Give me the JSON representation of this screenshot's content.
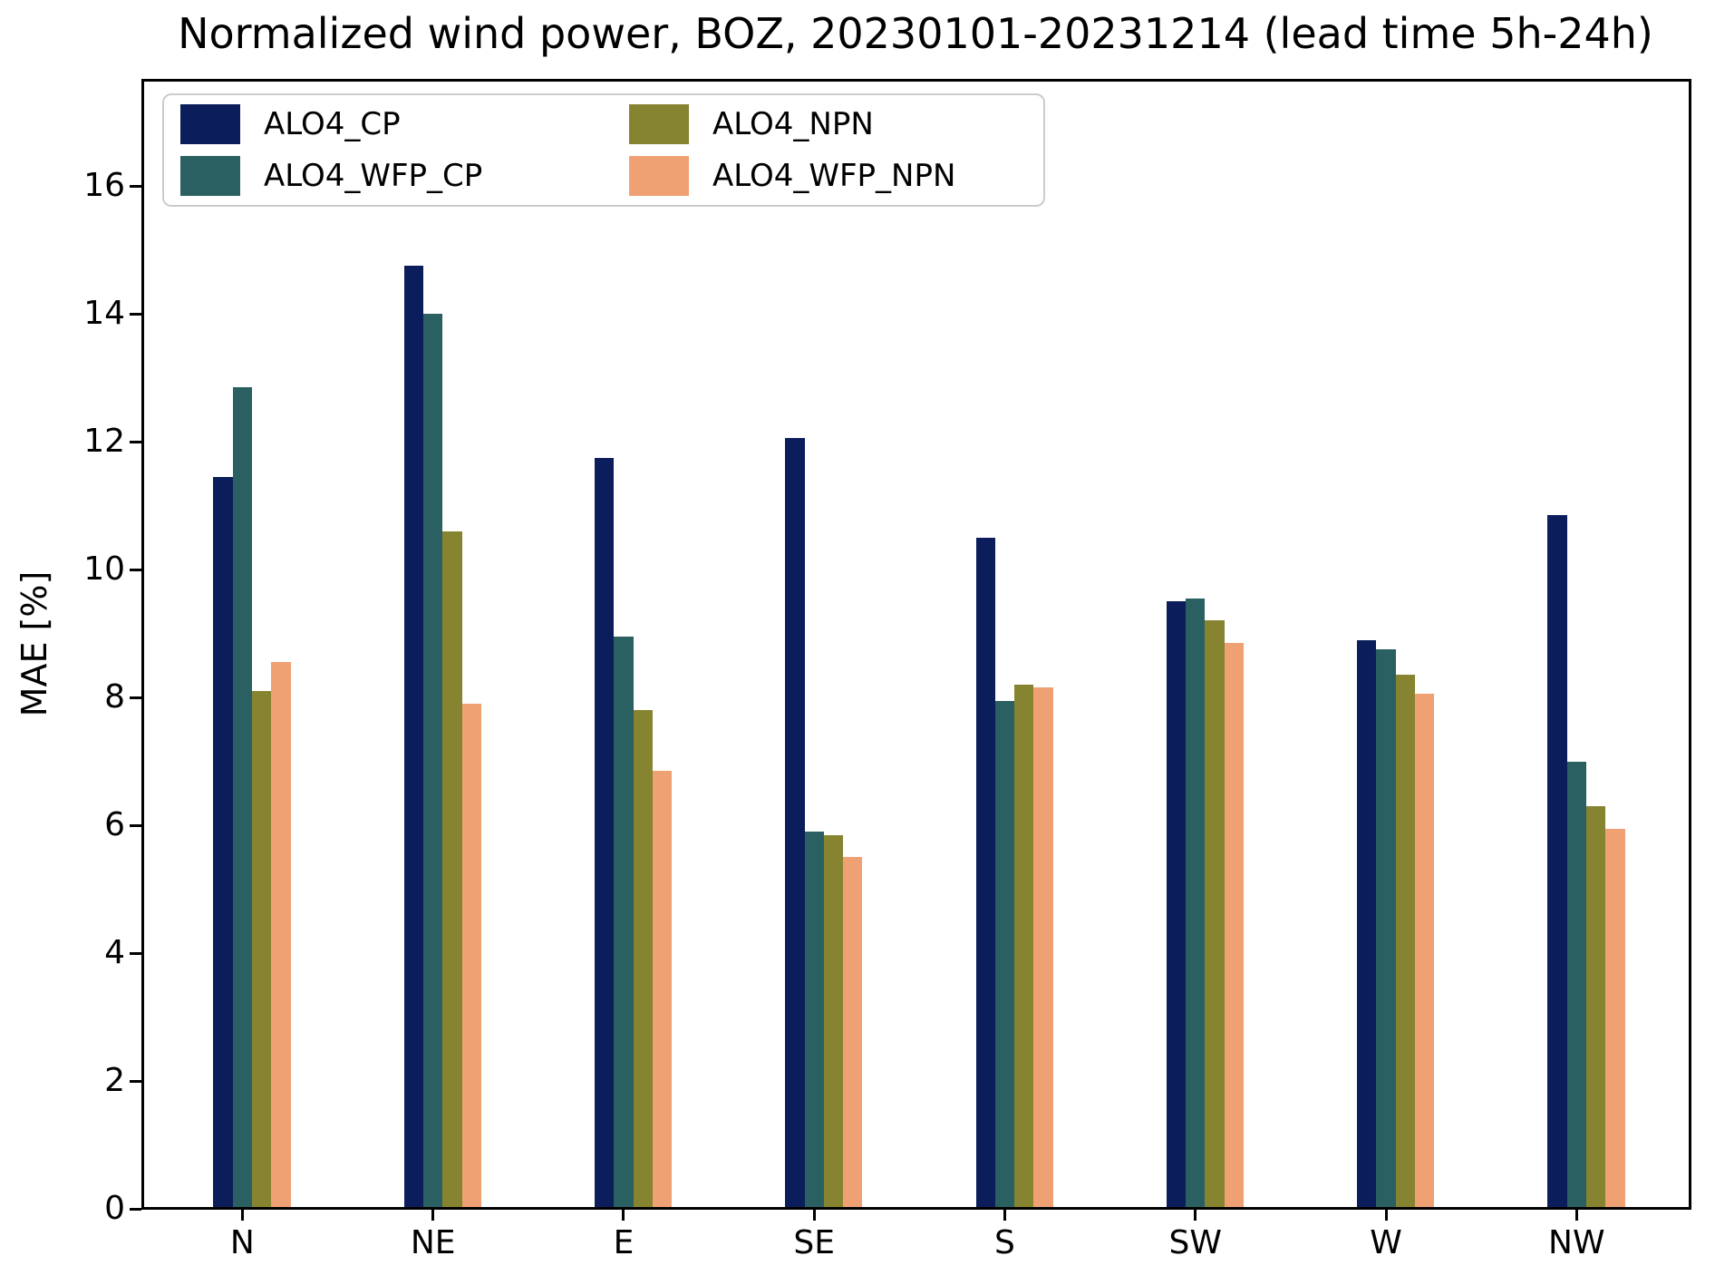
{
  "chart_data": {
    "type": "bar",
    "title": "Normalized wind power, BOZ, 20230101-20231214 (lead time 5h-24h)",
    "xlabel": "",
    "ylabel": "MAE [%]",
    "categories": [
      "N",
      "NE",
      "E",
      "SE",
      "S",
      "SW",
      "W",
      "NW"
    ],
    "series": [
      {
        "name": "ALO4_CP",
        "color": "#0b1d5b",
        "values": [
          11.45,
          14.75,
          11.75,
          12.05,
          10.5,
          9.5,
          8.9,
          10.85
        ]
      },
      {
        "name": "ALO4_WFP_CP",
        "color": "#2a6061",
        "values": [
          12.85,
          14.0,
          8.95,
          5.9,
          7.95,
          9.55,
          8.75,
          7.0
        ]
      },
      {
        "name": "ALO4_NPN",
        "color": "#878431",
        "values": [
          8.1,
          10.6,
          7.8,
          5.85,
          8.2,
          9.2,
          8.35,
          6.3
        ]
      },
      {
        "name": "ALO4_WFP_NPN",
        "color": "#f0a173",
        "values": [
          8.55,
          7.9,
          6.85,
          5.5,
          8.15,
          8.85,
          8.05,
          5.95
        ]
      }
    ],
    "ylim": [
      0,
      17.66
    ],
    "yticks": [
      0,
      2,
      4,
      6,
      8,
      10,
      12,
      14,
      16
    ],
    "grid": false,
    "legend_position": "upper left",
    "legend_ncol": 2
  }
}
